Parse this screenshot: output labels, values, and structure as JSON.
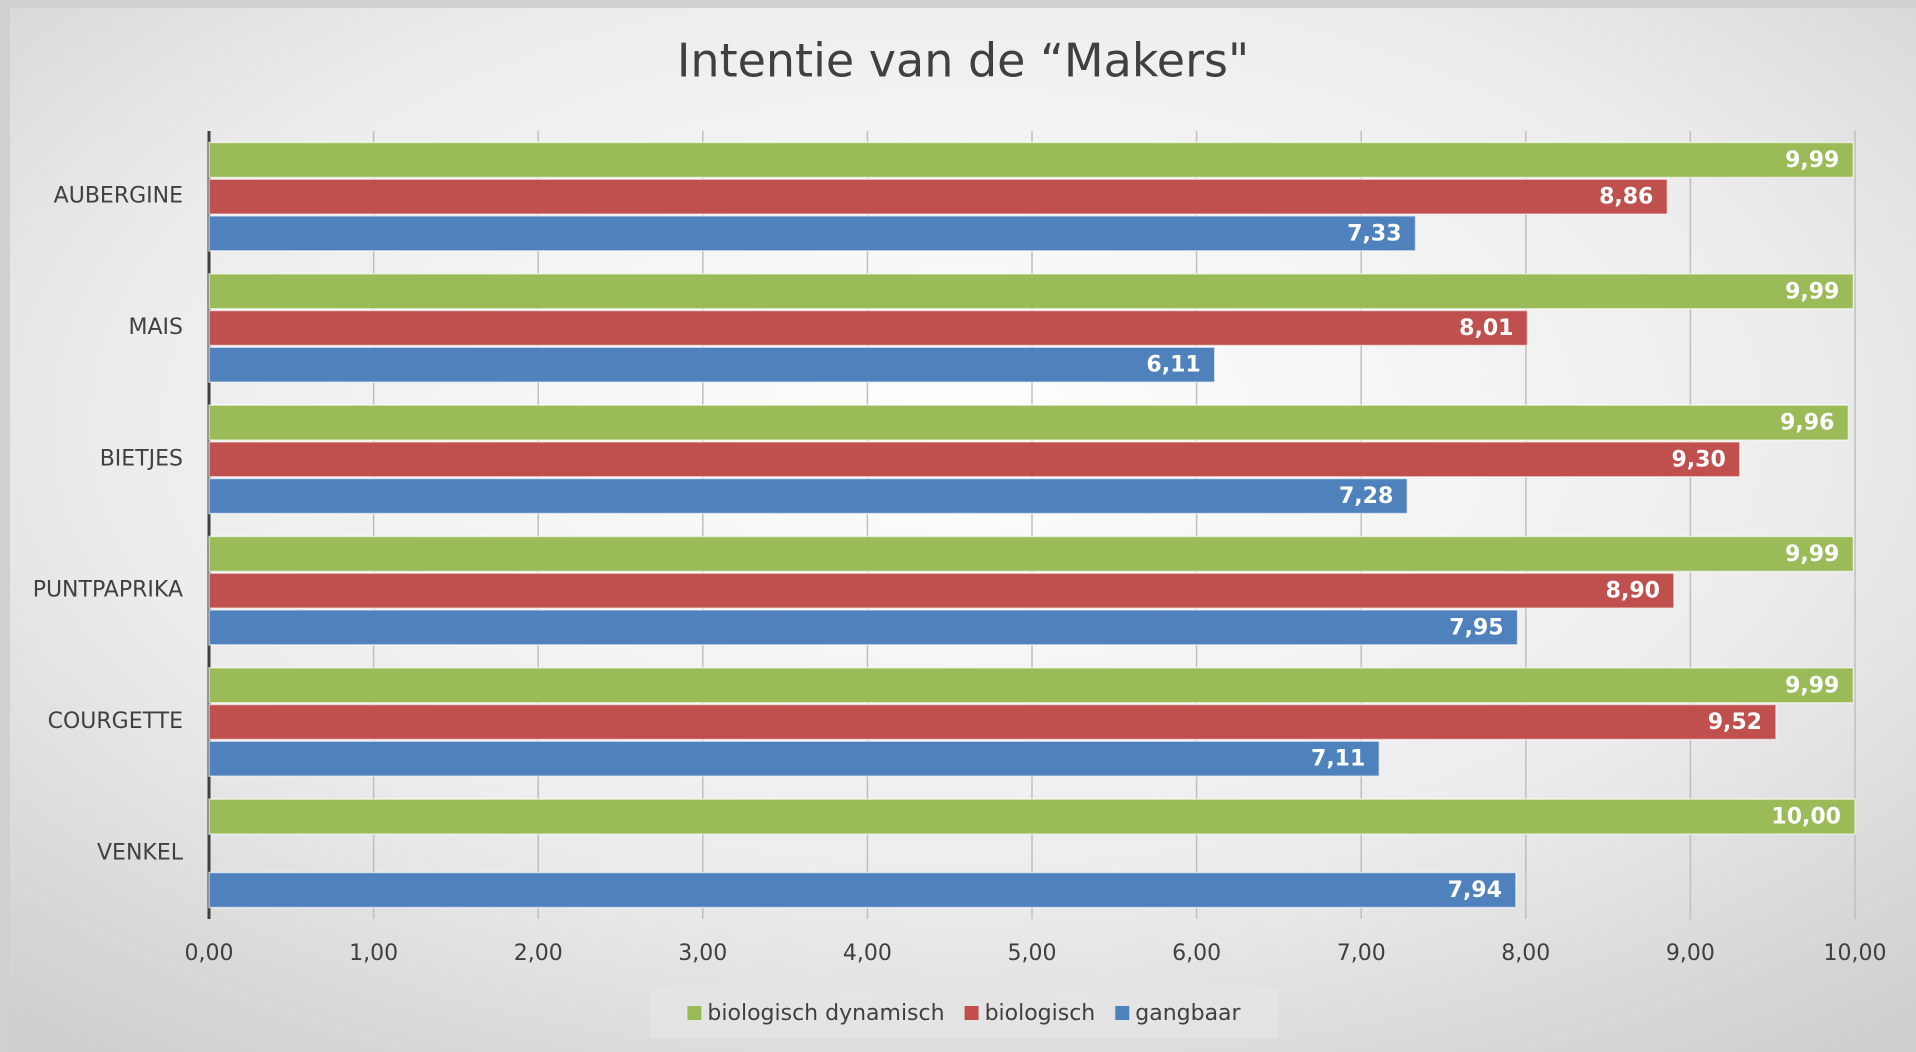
{
  "chart_data": {
    "type": "hbar",
    "title": "Intentie van de “Makers\"",
    "categories": [
      "AUBERGINE",
      "MAIS",
      "BIETJES",
      "PUNTPAPRIKA",
      "COURGETTE",
      "VENKEL"
    ],
    "series": [
      {
        "name": "biologisch dynamisch",
        "color": "#9bbb59",
        "values": [
          9.99,
          9.99,
          9.96,
          9.99,
          9.99,
          10.0
        ],
        "value_labels": [
          "9,99",
          "9,99",
          "9,96",
          "9,99",
          "9,99",
          "10,00"
        ]
      },
      {
        "name": "biologisch",
        "color": "#c0504d",
        "values": [
          8.86,
          8.01,
          9.3,
          8.9,
          9.52,
          null
        ],
        "value_labels": [
          "8,86",
          "8,01",
          "9,30",
          "8,90",
          "9,52",
          null
        ]
      },
      {
        "name": "gangbaar",
        "color": "#4f81bd",
        "values": [
          7.33,
          6.11,
          7.28,
          7.95,
          7.11,
          7.94
        ],
        "value_labels": [
          "7,33",
          "6,11",
          "7,28",
          "7,95",
          "7,11",
          "7,94"
        ]
      }
    ],
    "xlim": [
      0,
      10
    ],
    "xticks": [
      {
        "value": 0,
        "label": "0,00"
      },
      {
        "value": 1,
        "label": "1,00"
      },
      {
        "value": 2,
        "label": "2,00"
      },
      {
        "value": 3,
        "label": "3,00"
      },
      {
        "value": 4,
        "label": "4,00"
      },
      {
        "value": 5,
        "label": "5,00"
      },
      {
        "value": 6,
        "label": "6,00"
      },
      {
        "value": 7,
        "label": "7,00"
      },
      {
        "value": 8,
        "label": "8,00"
      },
      {
        "value": 9,
        "label": "9,00"
      },
      {
        "value": 10,
        "label": "10,00"
      }
    ],
    "grid": true,
    "legend": "bottom"
  }
}
